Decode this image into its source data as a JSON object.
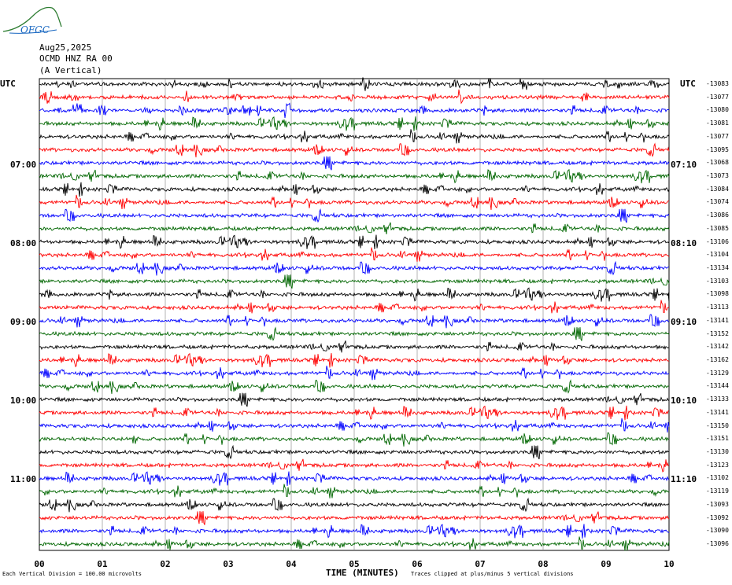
{
  "logo": {
    "text": "OFGC"
  },
  "header": {
    "date": "Aug25,2025",
    "station": "OCMD HNZ RA 00",
    "component": "(A Vertical)"
  },
  "utc_left": "UTC",
  "utc_right": "UTC",
  "left_times": [
    "07:00",
    "08:00",
    "09:00",
    "10:00",
    "11:00"
  ],
  "right_times": [
    "07:10",
    "08:10",
    "09:10",
    "10:10",
    "11:10"
  ],
  "footer": {
    "left": "Each Vertical Division =  100.00 microvolts",
    "right": "Traces clipped at plus/minus 5 vertical divisions"
  },
  "colors": {
    "trace_cycle": [
      "#000000",
      "#ff0000",
      "#0000ff",
      "#006600"
    ],
    "grid": "#808080"
  },
  "chart_data": {
    "type": "line",
    "title": "",
    "xlabel": "TIME (MINUTES)",
    "x_ticks": [
      "00",
      "01",
      "02",
      "03",
      "04",
      "05",
      "06",
      "07",
      "08",
      "09",
      "10"
    ],
    "xlim": [
      0,
      10
    ],
    "trace_count": 36,
    "trace_minutes": 10,
    "trace_offsets": [
      -13083,
      -13077,
      -13080,
      -13081,
      -13077,
      -13095,
      -13068,
      -13073,
      -13084,
      -13074,
      -13086,
      -13085,
      -13106,
      -13104,
      -13134,
      -13103,
      -13098,
      -13113,
      -13141,
      -13152,
      -13142,
      -13162,
      -13129,
      -13144,
      -13133,
      -13141,
      -13150,
      -13151,
      -13130,
      -13123,
      -13102,
      -13119,
      -13093,
      -13092,
      -13090,
      -13096
    ]
  }
}
